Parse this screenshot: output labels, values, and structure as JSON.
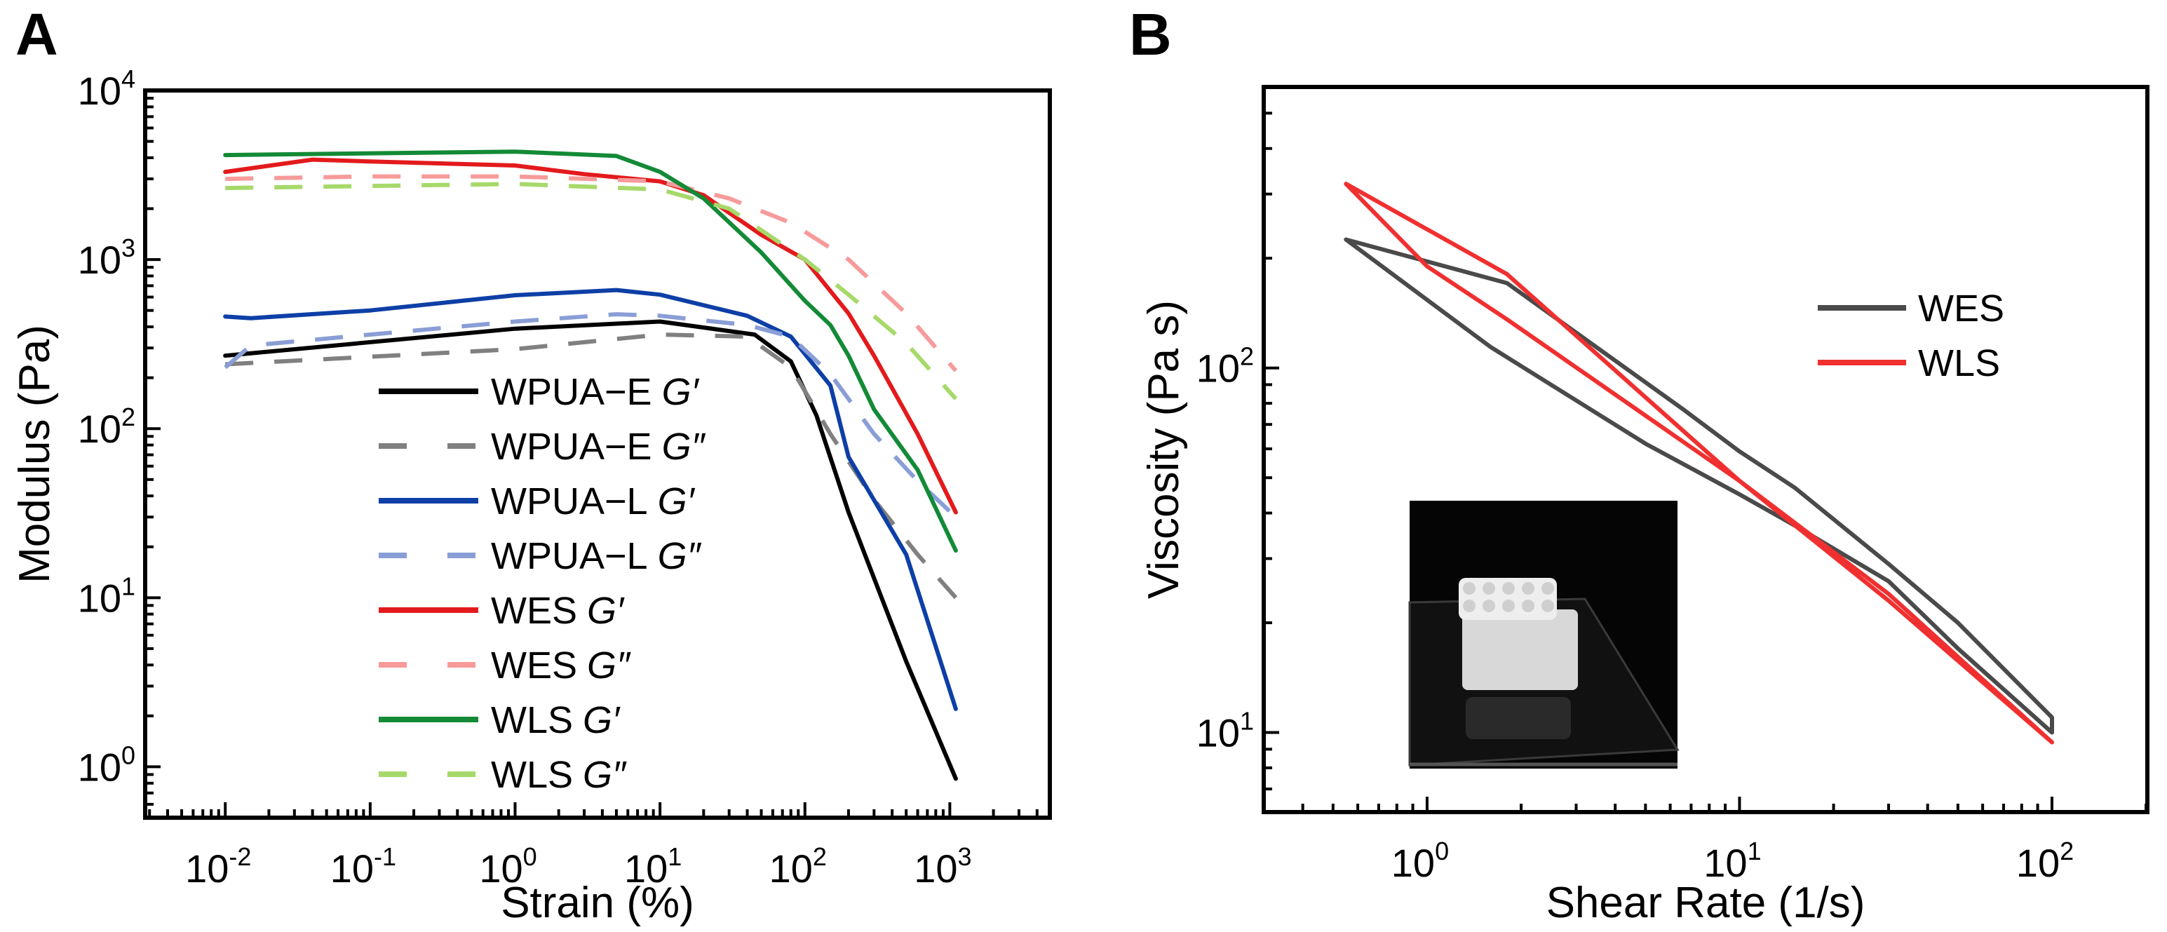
{
  "chart_data": [
    {
      "panel_label": "A",
      "type": "line",
      "xscale": "log",
      "yscale": "log",
      "xlabel": "Strain (%)",
      "ylabel": "Modulus (Pa)",
      "xlim": [
        0.0028,
        4900
      ],
      "ylim": [
        0.5,
        10000
      ],
      "xticks": [
        {
          "base": "10",
          "exp": "-2",
          "value": 0.01
        },
        {
          "base": "10",
          "exp": "-1",
          "value": 0.1
        },
        {
          "base": "10",
          "exp": "0",
          "value": 1
        },
        {
          "base": "10",
          "exp": "1",
          "value": 10
        },
        {
          "base": "10",
          "exp": "2",
          "value": 100
        },
        {
          "base": "10",
          "exp": "3",
          "value": 1000
        }
      ],
      "yticks": [
        {
          "base": "10",
          "exp": "0",
          "value": 1
        },
        {
          "base": "10",
          "exp": "1",
          "value": 10
        },
        {
          "base": "10",
          "exp": "2",
          "value": 100
        },
        {
          "base": "10",
          "exp": "3",
          "value": 1000
        },
        {
          "base": "10",
          "exp": "4",
          "value": 10000
        }
      ],
      "legend_position": "lower-center",
      "series": [
        {
          "name": "WPUA−E",
          "mod": "G′",
          "color": "#000000",
          "dashed": false,
          "x": [
            0.01,
            1,
            10,
            45,
            80,
            120,
            200,
            500,
            1100
          ],
          "y": [
            270,
            390,
            430,
            360,
            250,
            120,
            32,
            4.2,
            0.85
          ]
        },
        {
          "name": "WPUA−E",
          "mod": "G″",
          "color": "#808080",
          "dashed": true,
          "x": [
            0.01,
            1,
            10,
            40,
            80,
            150,
            300,
            600,
            1100
          ],
          "y": [
            240,
            295,
            360,
            350,
            230,
            93,
            38,
            18,
            10
          ]
        },
        {
          "name": "WPUA−L",
          "mod": "G′",
          "color": "#0d3fa6",
          "dashed": false,
          "x": [
            0.01,
            0.015,
            0.1,
            1,
            5,
            10,
            40,
            80,
            150,
            200,
            500,
            1100
          ],
          "y": [
            460,
            450,
            500,
            615,
            660,
            620,
            465,
            350,
            180,
            68,
            18,
            2.2
          ]
        },
        {
          "name": "WPUA−L",
          "mod": "G″",
          "color": "#8a9ed6",
          "dashed": true,
          "x": [
            0.01,
            0.015,
            0.1,
            1,
            5,
            10,
            40,
            80,
            150,
            300,
            600,
            1100
          ],
          "y": [
            230,
            310,
            360,
            430,
            475,
            465,
            410,
            350,
            210,
            93,
            49,
            30
          ]
        },
        {
          "name": "WES",
          "mod": "G′",
          "color": "#e31a1c",
          "dashed": false,
          "x": [
            0.01,
            0.04,
            0.1,
            1,
            3,
            10,
            20,
            50,
            100,
            200,
            300,
            600,
            1100
          ],
          "y": [
            3300,
            3900,
            3800,
            3600,
            3200,
            2900,
            2400,
            1400,
            1000,
            480,
            270,
            93,
            32
          ]
        },
        {
          "name": "WES",
          "mod": "G″",
          "color": "#f79a9a",
          "dashed": true,
          "x": [
            0.01,
            0.1,
            1,
            10,
            30,
            80,
            200,
            500,
            1100
          ],
          "y": [
            3000,
            3100,
            3100,
            2900,
            2300,
            1650,
            1000,
            480,
            220
          ]
        },
        {
          "name": "WLS",
          "mod": "G′",
          "color": "#138a36",
          "dashed": false,
          "x": [
            0.01,
            1,
            5,
            10,
            20,
            50,
            100,
            150,
            200,
            300,
            600,
            1100
          ],
          "y": [
            4150,
            4350,
            4100,
            3300,
            2300,
            1100,
            570,
            410,
            270,
            130,
            57,
            19
          ]
        },
        {
          "name": "WLS",
          "mod": "G″",
          "color": "#a6d96a",
          "dashed": true,
          "x": [
            0.01,
            1,
            10,
            30,
            100,
            200,
            500,
            1100
          ],
          "y": [
            2650,
            2800,
            2600,
            2000,
            1000,
            620,
            320,
            150
          ]
        }
      ]
    },
    {
      "panel_label": "B",
      "type": "line",
      "xscale": "log",
      "yscale": "log",
      "xlabel": "Shear Rate (1/s)",
      "ylabel": "Viscosity (Pa s)",
      "xlim": [
        0.3,
        202
      ],
      "ylim": [
        6.05,
        590
      ],
      "xticks": [
        {
          "base": "10",
          "exp": "0",
          "value": 1
        },
        {
          "base": "10",
          "exp": "1",
          "value": 10
        },
        {
          "base": "10",
          "exp": "2",
          "value": 100
        }
      ],
      "yticks": [
        {
          "base": "10",
          "exp": "1",
          "value": 10
        },
        {
          "base": "10",
          "exp": "2",
          "value": 100
        }
      ],
      "legend_position": "upper-right",
      "inset": "photo of white 3D-printed lattice scaffold on glass, black background",
      "series": [
        {
          "name": "WES",
          "color": "#4a4a4a",
          "x": [
            0.55,
            1.8,
            6.6,
            10,
            15,
            30,
            50,
            100,
            100,
            50,
            30,
            15,
            10,
            5,
            1.6,
            0.55
          ],
          "y": [
            225,
            171,
            77,
            59,
            47,
            29,
            20,
            11,
            10,
            17,
            26,
            37,
            45,
            62,
            114,
            225
          ]
        },
        {
          "name": "WLS",
          "color": "#f03030",
          "x": [
            0.55,
            1.8,
            10,
            30,
            100,
            30,
            10,
            1.8,
            1.0,
            0.55
          ],
          "y": [
            320,
            181,
            49,
            24,
            9.4,
            23,
            49,
            136,
            190,
            320
          ]
        }
      ]
    }
  ]
}
